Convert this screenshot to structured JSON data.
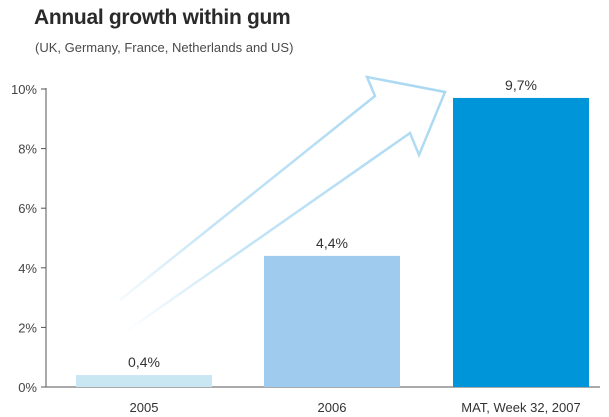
{
  "chart_data": {
    "type": "bar",
    "title": "Annual growth within gum",
    "subtitle": "(UK, Germany, France, Netherlands and US)",
    "categories": [
      "2005",
      "2006",
      "MAT, Week 32, 2007"
    ],
    "values": [
      0.4,
      4.4,
      9.7
    ],
    "data_labels": [
      "0,4%",
      "4,4%",
      "9,7%"
    ],
    "yticks": [
      0,
      2,
      4,
      6,
      8,
      10
    ],
    "ytick_labels": [
      "0%",
      "2%",
      "4%",
      "6%",
      "8%",
      "10%"
    ],
    "ylim": [
      0,
      10
    ],
    "xlabel": "",
    "ylabel": "",
    "grid": false,
    "colors": {
      "bars": [
        "#c9e7f3",
        "#9ecbee",
        "#0095d8"
      ],
      "arrow": "#a9d8f2",
      "axis": "#555555"
    },
    "annotation": "upward growth arrow"
  }
}
